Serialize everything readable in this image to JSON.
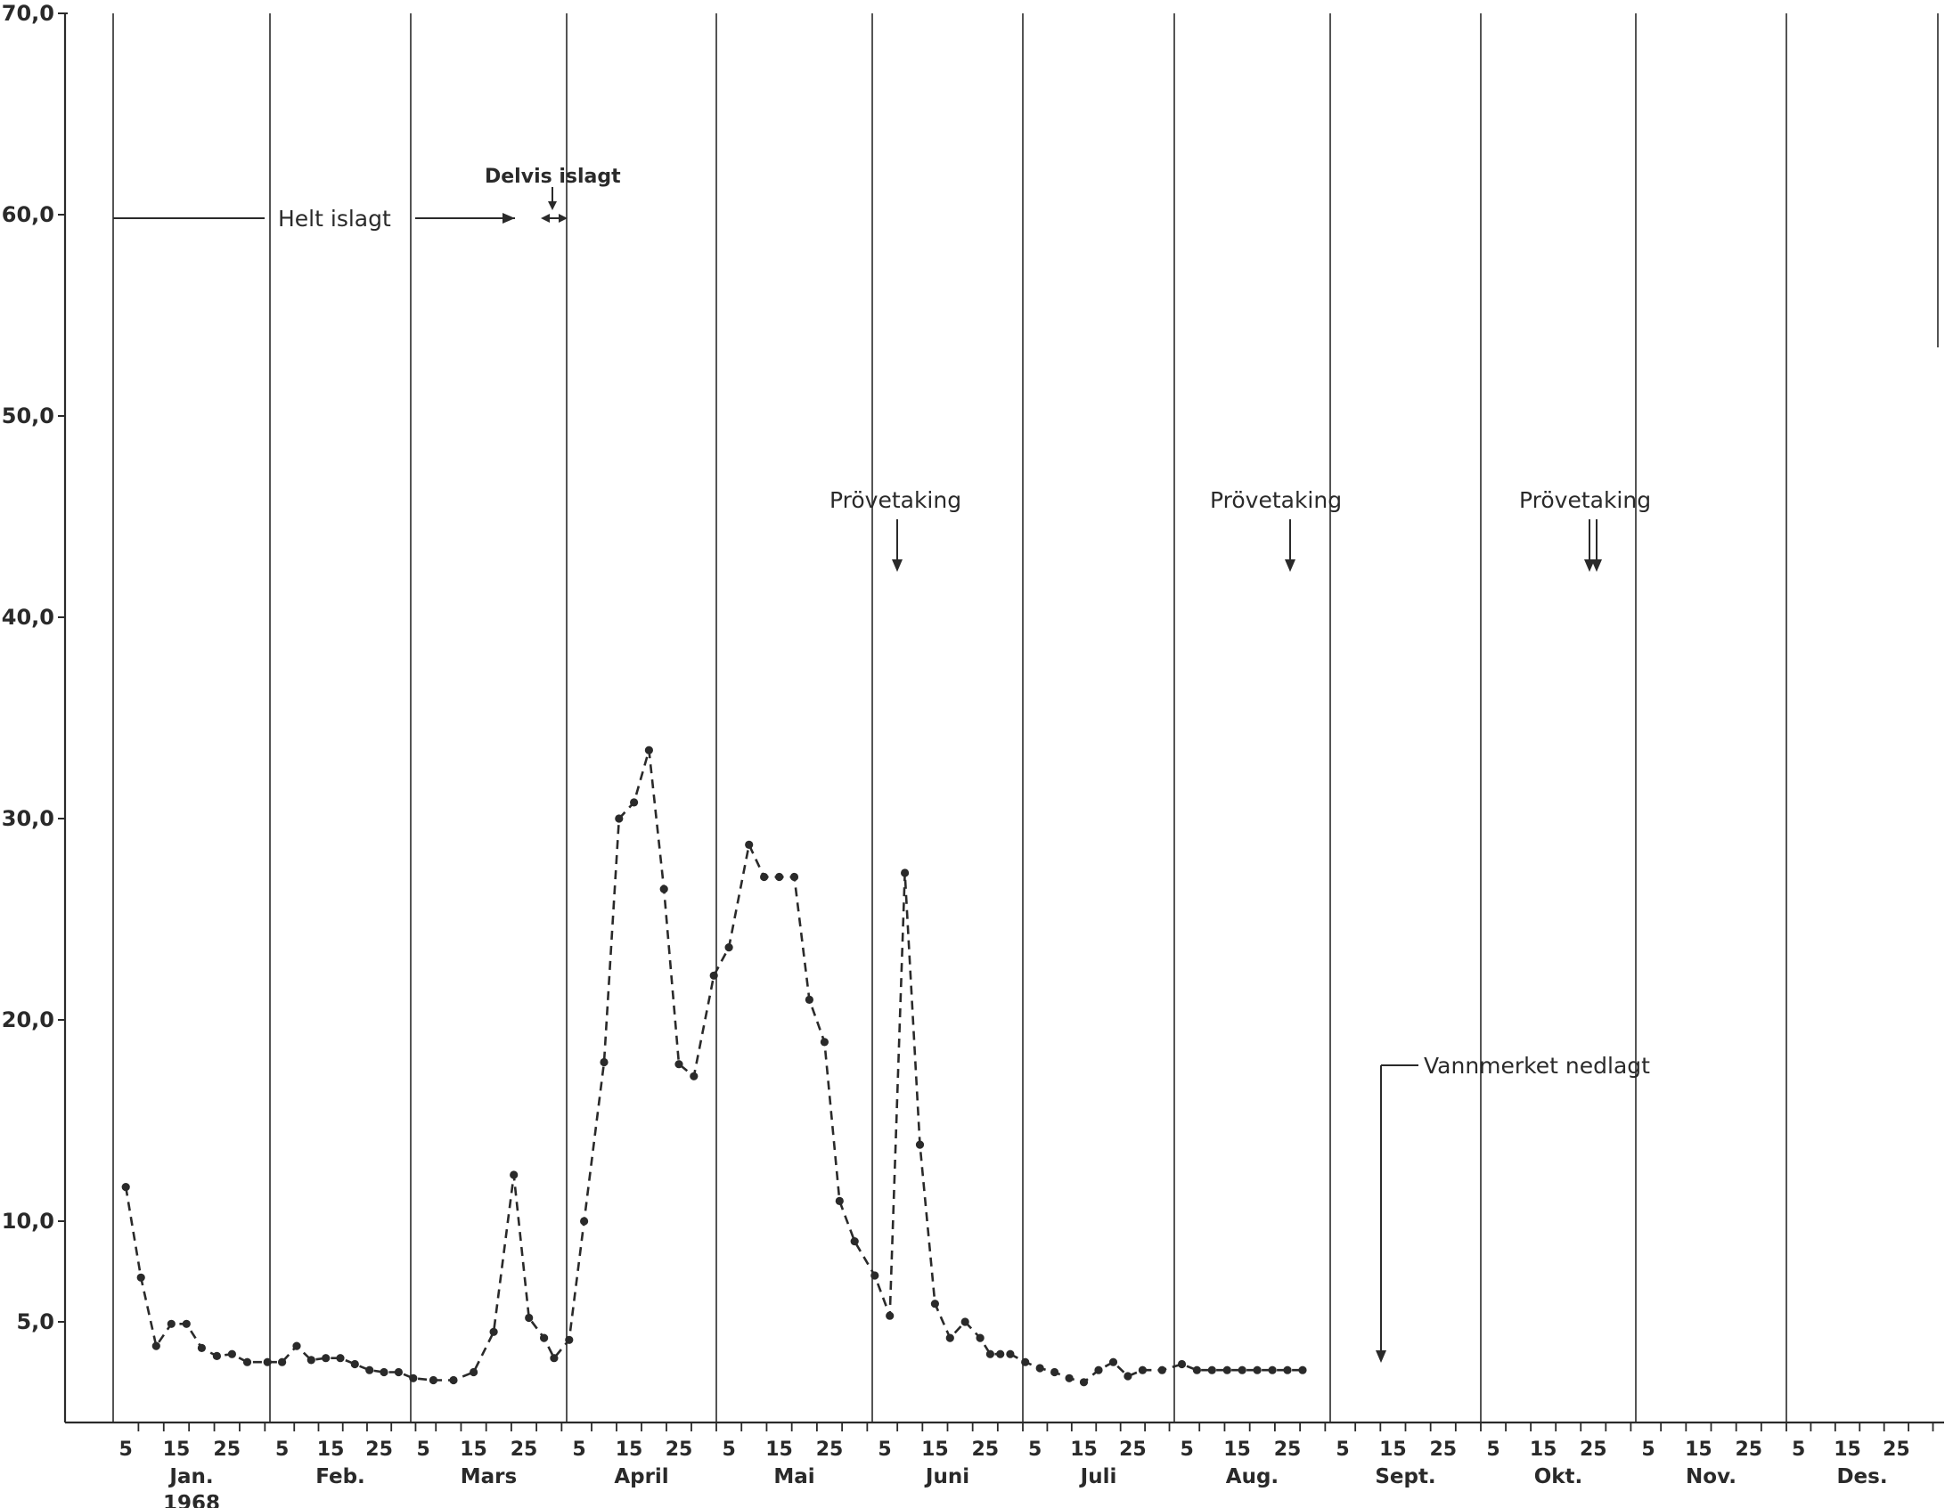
{
  "chart_data": {
    "type": "line",
    "title": "",
    "xlabel": "",
    "ylabel": "",
    "year_label": "1968",
    "ylim": [
      0,
      70
    ],
    "y_ticks": [
      "70,0",
      "60,0",
      "50,0",
      "40,0",
      "30,0",
      "20,0",
      "10,0",
      "5,0"
    ],
    "y_tick_values": [
      70,
      60,
      50,
      40,
      30,
      20,
      10,
      5
    ],
    "months": [
      "Jan.",
      "Feb.",
      "Mars",
      "April",
      "Mai",
      "Juni",
      "Juli",
      "Aug.",
      "Sept.",
      "Okt.",
      "Nov.",
      "Des."
    ],
    "day_ticks": [
      "5",
      "15",
      "25"
    ],
    "line_style": "dashed with dot markers",
    "grid": "vertical month boundaries only",
    "series": [
      {
        "x": [
          "1968-01-03",
          "1968-01-06",
          "1968-01-09",
          "1968-01-12",
          "1968-01-15",
          "1968-01-18",
          "1968-01-21",
          "1968-01-24",
          "1968-01-27",
          "1968-01-31",
          "1968-02-03",
          "1968-02-06",
          "1968-02-09",
          "1968-02-12",
          "1968-02-15",
          "1968-02-18",
          "1968-02-21",
          "1968-02-24",
          "1968-02-27",
          "1968-03-01",
          "1968-03-05",
          "1968-03-09",
          "1968-03-13",
          "1968-03-17",
          "1968-03-21",
          "1968-03-24",
          "1968-03-27",
          "1968-03-29",
          "1968-04-01",
          "1968-04-04",
          "1968-04-08",
          "1968-04-11",
          "1968-04-14",
          "1968-04-17",
          "1968-04-20",
          "1968-04-23",
          "1968-04-26",
          "1968-04-30",
          "1968-05-03",
          "1968-05-07",
          "1968-05-10",
          "1968-05-13",
          "1968-05-16",
          "1968-05-19",
          "1968-05-22",
          "1968-05-25",
          "1968-05-28",
          "1968-06-01",
          "1968-06-04",
          "1968-06-07",
          "1968-06-10",
          "1968-06-13",
          "1968-06-16",
          "1968-06-19",
          "1968-06-22",
          "1968-06-24",
          "1968-06-26",
          "1968-06-28",
          "1968-07-01",
          "1968-07-04",
          "1968-07-07",
          "1968-07-10",
          "1968-07-13",
          "1968-07-16",
          "1968-07-19",
          "1968-07-22",
          "1968-07-25",
          "1968-07-29",
          "1968-08-02",
          "1968-08-05",
          "1968-08-08",
          "1968-08-11",
          "1968-08-14",
          "1968-08-17",
          "1968-08-20",
          "1968-08-23",
          "1968-08-26"
        ],
        "y": [
          11.7,
          7.2,
          3.8,
          4.9,
          4.9,
          3.7,
          3.3,
          3.4,
          3.0,
          3.0,
          3.0,
          3.8,
          3.1,
          3.2,
          3.2,
          2.9,
          2.6,
          2.5,
          2.5,
          2.2,
          2.1,
          2.1,
          2.5,
          4.5,
          12.3,
          5.2,
          4.2,
          3.2,
          4.1,
          10.0,
          17.9,
          30.0,
          30.8,
          33.4,
          26.5,
          17.8,
          17.2,
          22.2,
          23.6,
          28.7,
          27.1,
          27.1,
          27.1,
          21.0,
          18.9,
          11.0,
          9.0,
          7.3,
          5.3,
          27.3,
          13.8,
          5.9,
          4.2,
          5.0,
          4.2,
          3.4,
          3.4,
          3.4,
          3.0,
          2.7,
          2.5,
          2.2,
          2.0,
          2.6,
          3.0,
          2.3,
          2.6,
          2.6,
          2.9,
          2.6,
          2.6,
          2.6,
          2.6,
          2.6,
          2.6,
          2.6,
          2.6
        ]
      }
    ],
    "annotations": {
      "ice_full": "Helt islagt",
      "ice_partial": "Delvis islagt",
      "sampling": [
        "Prövetaking",
        "Prövetaking",
        "Prövetaking"
      ],
      "gauge_closed": "Vannmerket nedlagt"
    }
  }
}
